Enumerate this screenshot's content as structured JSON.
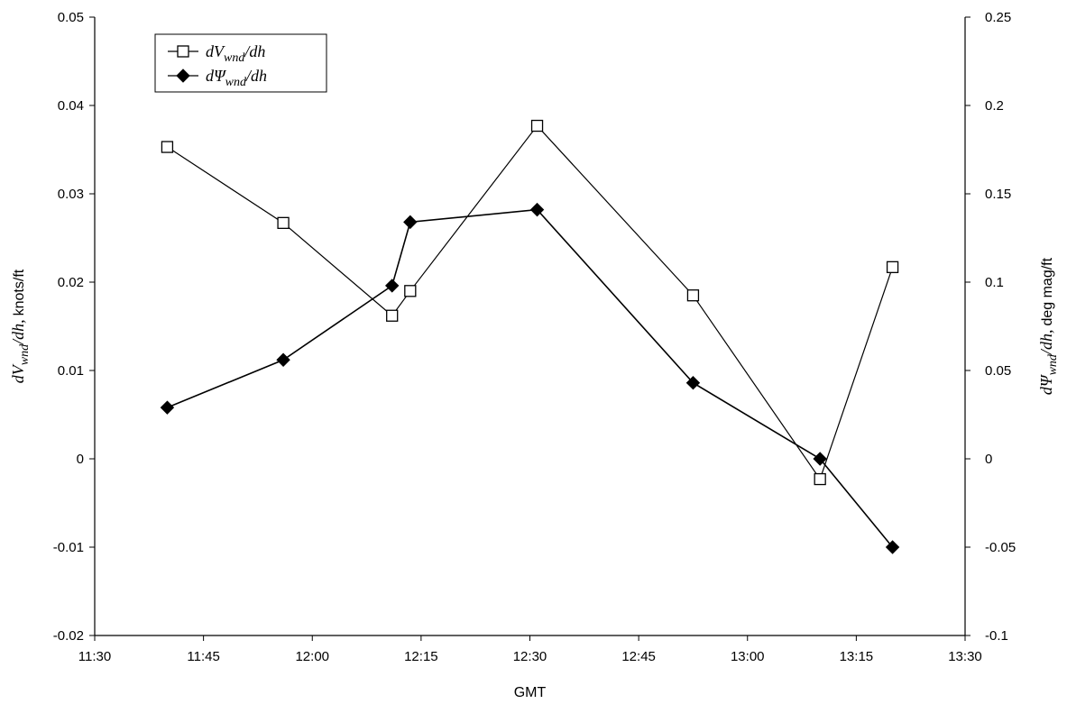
{
  "chart_data": {
    "type": "line",
    "xlabel": "GMT",
    "ylabel_left": {
      "main": "dV",
      "sub": "wnd",
      "tail": "/dh,",
      "unit": "knots/ft"
    },
    "ylabel_right": {
      "main": "dΨ",
      "sub": "wnd",
      "tail": "/dh,",
      "unit": "deg mag/ft"
    },
    "x_ticks": [
      "11:30",
      "11:45",
      "12:00",
      "12:15",
      "12:30",
      "12:45",
      "13:00",
      "13:15",
      "13:30"
    ],
    "x_range_minutes": [
      690,
      810
    ],
    "y_left_ticks": [
      "-0.02",
      "-0.01",
      "0",
      "0.01",
      "0.02",
      "0.03",
      "0.04",
      "0.05"
    ],
    "y_left_range": [
      -0.02,
      0.05
    ],
    "y_right_ticks": [
      "-0.1",
      "-0.05",
      "0",
      "0.05",
      "0.1",
      "0.15",
      "0.2",
      "0.25"
    ],
    "y_right_range": [
      -0.1,
      0.25
    ],
    "legend_position": "top-left",
    "series": [
      {
        "legend": {
          "main": "dV",
          "sub": "wnd",
          "tail": "/dh"
        },
        "axis": "left",
        "marker": "open-square",
        "x": [
          "11:40",
          "11:56",
          "12:11",
          "12:13",
          "12:31",
          "12:52",
          "13:10",
          "13:20"
        ],
        "x_min": [
          700,
          716,
          731,
          733.5,
          751,
          772.5,
          790,
          800
        ],
        "y": [
          0.0353,
          0.0267,
          0.0162,
          0.019,
          0.0377,
          0.0185,
          -0.0023,
          0.0217
        ]
      },
      {
        "legend": {
          "main": "dΨ",
          "sub": "wnd",
          "tail": "/dh"
        },
        "axis": "right",
        "marker": "filled-diamond",
        "x": [
          "11:40",
          "11:56",
          "12:11",
          "12:13",
          "12:31",
          "12:52",
          "13:10",
          "13:20"
        ],
        "x_min": [
          700,
          716,
          731,
          733.5,
          751,
          772.5,
          790,
          800
        ],
        "y": [
          0.029,
          0.056,
          0.098,
          0.134,
          0.141,
          0.043,
          0.0,
          -0.05
        ]
      }
    ]
  }
}
